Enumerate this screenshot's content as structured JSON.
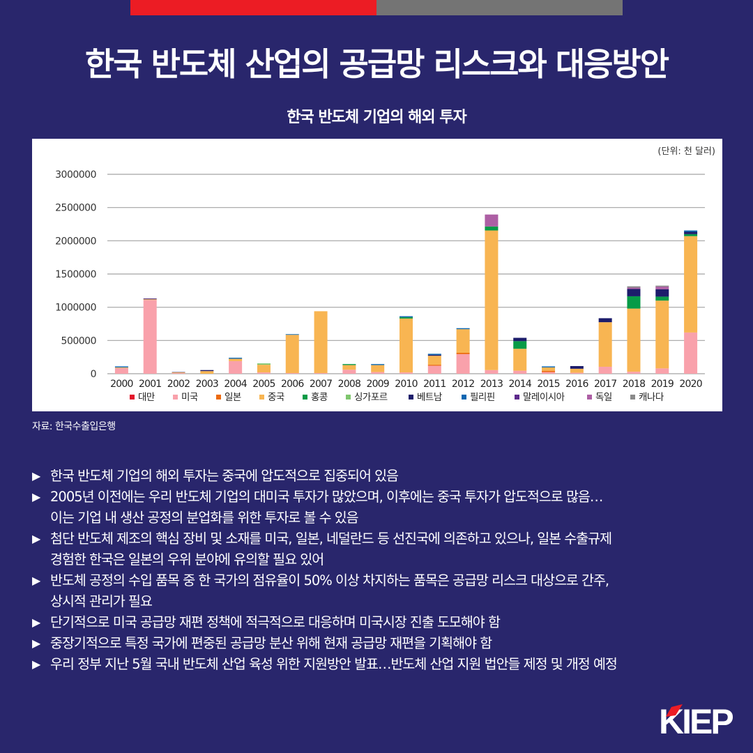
{
  "header": {
    "title": "한국 반도체 산업의 공급망 리스크와 대응방안",
    "chart_title": "한국 반도체 기업의 해외 투자"
  },
  "source": "자료: 한국수출입은행",
  "logo": {
    "text": "KIEP"
  },
  "bullets": [
    {
      "lines": [
        "한국 반도체 기업의 해외 투자는 중국에 압도적으로 집중되어 있음"
      ]
    },
    {
      "lines": [
        "2005년 이전에는 우리 반도체 기업의 대미국 투자가 많았으며, 이후에는 중국 투자가 압도적으로 많음…",
        "이는 기업 내 생산 공정의 분업화를 위한 투자로 볼 수 있음"
      ]
    },
    {
      "lines": [
        "첨단 반도체 제조의 핵심 장비 및 소재를 미국, 일본, 네덜란드 등 선진국에 의존하고 있으나, 일본 수출규제",
        "경험한 한국은 일본의 우위 분야에 유의할 필요 있어"
      ]
    },
    {
      "lines": [
        "반도체 공정의 수입 품목 중 한 국가의 점유율이 50% 이상 차지하는 품목은 공급망 리스크 대상으로 간주,",
        "상시적 관리가 필요"
      ]
    },
    {
      "lines": [
        "단기적으로 미국 공급망 재편 정책에 적극적으로 대응하며 미국시장 진출 도모해야 함"
      ]
    },
    {
      "lines": [
        "중장기적으로 특정 국가에 편중된 공급망 분산 위해 현재 공급망 재편을 기획해야 함"
      ]
    },
    {
      "lines": [
        "우리 정부 지난 5월 국내 반도체 산업 육성 위한 지원방안 발표…반도체 산업 지원 법안들 제정 및 개정 예정"
      ]
    }
  ],
  "colors": {
    "background": "#29266c",
    "accent_red": "#ec1c24",
    "accent_gray": "#747474"
  },
  "chart_data": {
    "type": "bar",
    "stacked": true,
    "title": "한국 반도체 기업의 해외 투자",
    "unit_label": "(단위: 천 달러)",
    "xlabel": "",
    "ylabel": "",
    "ylim": [
      0,
      3000000
    ],
    "yticks": [
      0,
      500000,
      1000000,
      1500000,
      2000000,
      2500000,
      3000000
    ],
    "grid": true,
    "legend_position": "bottom",
    "categories": [
      "2000",
      "2001",
      "2002",
      "2003",
      "2004",
      "2005",
      "2006",
      "2007",
      "2008",
      "2009",
      "2010",
      "2011",
      "2012",
      "2013",
      "2014",
      "2015",
      "2016",
      "2017",
      "2018",
      "2019",
      "2020"
    ],
    "series": [
      {
        "name": "대만",
        "color": "#e3152b",
        "values": [
          0,
          0,
          0,
          0,
          0,
          0,
          0,
          0,
          0,
          0,
          0,
          0,
          0,
          0,
          0,
          0,
          0,
          0,
          0,
          0,
          0
        ]
      },
      {
        "name": "미국",
        "color": "#f9a1ab",
        "values": [
          85000,
          1110000,
          10000,
          0,
          190000,
          20000,
          10000,
          10000,
          60000,
          25000,
          20000,
          120000,
          295000,
          55000,
          45000,
          25000,
          15000,
          105000,
          30000,
          80000,
          620000
        ]
      },
      {
        "name": "일본",
        "color": "#ec6a0e",
        "values": [
          0,
          0,
          0,
          0,
          0,
          0,
          0,
          0,
          0,
          0,
          0,
          15000,
          20000,
          0,
          0,
          20000,
          0,
          0,
          0,
          0,
          0
        ]
      },
      {
        "name": "중국",
        "color": "#f8b552",
        "values": [
          10000,
          10000,
          10000,
          40000,
          35000,
          115000,
          575000,
          930000,
          70000,
          105000,
          810000,
          135000,
          355000,
          2100000,
          330000,
          50000,
          60000,
          670000,
          950000,
          1020000,
          1450000
        ]
      },
      {
        "name": "홍콩",
        "color": "#079b47",
        "values": [
          0,
          0,
          0,
          0,
          0,
          0,
          0,
          0,
          15000,
          0,
          20000,
          0,
          0,
          60000,
          115000,
          0,
          0,
          0,
          185000,
          60000,
          30000
        ]
      },
      {
        "name": "싱가포르",
        "color": "#7fc66e",
        "values": [
          0,
          0,
          0,
          0,
          0,
          20000,
          0,
          0,
          0,
          0,
          0,
          0,
          0,
          0,
          0,
          0,
          0,
          0,
          0,
          0,
          0
        ]
      },
      {
        "name": "베트남",
        "color": "#1c1c6b",
        "values": [
          0,
          8000,
          5000,
          15000,
          0,
          0,
          0,
          0,
          0,
          0,
          0,
          15000,
          0,
          0,
          50000,
          0,
          40000,
          60000,
          110000,
          110000,
          35000
        ]
      },
      {
        "name": "필리핀",
        "color": "#0b67b1",
        "values": [
          15000,
          0,
          0,
          0,
          15000,
          0,
          10000,
          0,
          0,
          15000,
          15000,
          15000,
          15000,
          0,
          0,
          15000,
          0,
          0,
          0,
          0,
          20000
        ]
      },
      {
        "name": "말레이시아",
        "color": "#5e2a8c",
        "values": [
          0,
          0,
          0,
          0,
          0,
          0,
          0,
          0,
          0,
          0,
          0,
          0,
          0,
          0,
          0,
          0,
          0,
          0,
          0,
          0,
          0
        ]
      },
      {
        "name": "독일",
        "color": "#ad5fa4",
        "values": [
          0,
          5000,
          0,
          0,
          0,
          0,
          0,
          0,
          0,
          0,
          0,
          0,
          0,
          180000,
          0,
          0,
          0,
          0,
          20000,
          40000,
          0
        ]
      },
      {
        "name": "캐나다",
        "color": "#8a8a8a",
        "values": [
          0,
          0,
          0,
          0,
          0,
          0,
          0,
          0,
          0,
          0,
          0,
          0,
          0,
          0,
          0,
          0,
          0,
          0,
          20000,
          15000,
          0
        ]
      }
    ]
  }
}
